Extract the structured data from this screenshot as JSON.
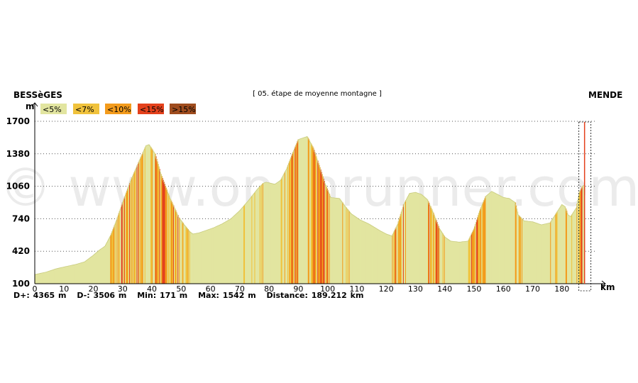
{
  "chart_data": {
    "type": "area",
    "start_label": "BESSèGES",
    "end_label": "MENDE",
    "title": "[ 05. étape de moyenne montagne ]",
    "y_unit": "m",
    "x_unit": "km",
    "ylim": [
      100,
      1700
    ],
    "xlim": [
      0,
      190
    ],
    "y_ticks": [
      100,
      420,
      740,
      1060,
      1380,
      1700
    ],
    "x_ticks": [
      0,
      10,
      20,
      30,
      40,
      50,
      60,
      70,
      80,
      90,
      100,
      110,
      120,
      130,
      140,
      150,
      160,
      170,
      180
    ],
    "grid": "horizontal dotted",
    "watermark": "© www.openrunner.com",
    "legend": [
      {
        "label": "<5%",
        "color": "#e2e5a0"
      },
      {
        "label": "<7%",
        "color": "#f0c23c"
      },
      {
        "label": "<10%",
        "color": "#f39b1c"
      },
      {
        "label": "<15%",
        "color": "#e4411c"
      },
      {
        "label": ">15%",
        "color": "#9f4c1e"
      }
    ],
    "elevation_profile": {
      "x": [
        0,
        4,
        7,
        10,
        14,
        17,
        20,
        22,
        24,
        26,
        28,
        30,
        33,
        36,
        38,
        39,
        41,
        43,
        46,
        49,
        51,
        53,
        54,
        56,
        58,
        61,
        64,
        67,
        70,
        73,
        76,
        78,
        79,
        82,
        84,
        86,
        88,
        90,
        93,
        95,
        97,
        99,
        101,
        104,
        106,
        108,
        111,
        114,
        118,
        120,
        122,
        124,
        126,
        128,
        130,
        132,
        134,
        136,
        138,
        140,
        142,
        145,
        148,
        150,
        152,
        154,
        156,
        158,
        160,
        162,
        164,
        165,
        167,
        170,
        173,
        176,
        178,
        180,
        181,
        182,
        183,
        185,
        186,
        187,
        187.5
      ],
      "y": [
        190,
        215,
        245,
        265,
        290,
        315,
        380,
        430,
        470,
        580,
        730,
        900,
        1130,
        1330,
        1460,
        1470,
        1380,
        1180,
        950,
        760,
        680,
        610,
        590,
        600,
        620,
        650,
        690,
        740,
        820,
        920,
        1030,
        1090,
        1100,
        1080,
        1120,
        1230,
        1380,
        1520,
        1550,
        1440,
        1270,
        1090,
        950,
        940,
        860,
        790,
        730,
        690,
        620,
        590,
        570,
        690,
        880,
        990,
        1000,
        980,
        930,
        800,
        650,
        560,
        520,
        510,
        520,
        640,
        820,
        960,
        1010,
        980,
        950,
        940,
        900,
        780,
        720,
        710,
        680,
        700,
        790,
        880,
        860,
        780,
        760,
        850,
        1000,
        1060,
        1070
      ]
    },
    "gradient_bands_note": "profile colored by gradient class per legend",
    "stats": {
      "d_plus": "D+: 4365 m",
      "d_minus": "D-: 3506 m",
      "min": "Min: 171 m",
      "max": "Max: 1542 m",
      "distance": "Distance: 189.212 km"
    }
  }
}
